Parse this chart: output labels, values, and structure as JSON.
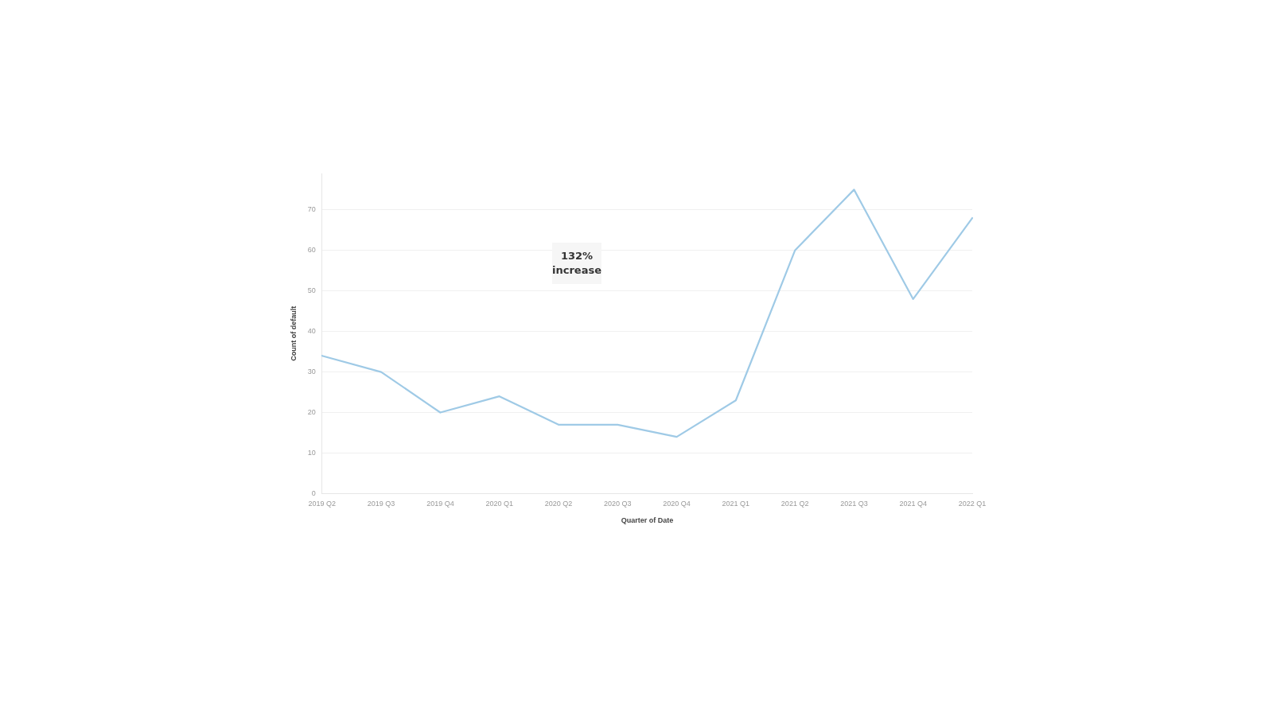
{
  "chart_data": {
    "type": "line",
    "xlabel": "Quarter of Date",
    "ylabel": "Count of default",
    "categories": [
      "2019 Q2",
      "2019 Q3",
      "2019 Q4",
      "2020 Q1",
      "2020 Q2",
      "2020 Q3",
      "2020 Q4",
      "2021 Q1",
      "2021 Q2",
      "2021 Q3",
      "2021 Q4",
      "2022 Q1"
    ],
    "series": [
      {
        "color": "#9fcae6",
        "values": [
          34,
          30,
          20,
          24,
          17,
          17,
          14,
          23,
          60,
          75,
          48,
          68
        ]
      }
    ],
    "ylim": [
      0,
      79
    ],
    "yticks": [
      0,
      10,
      20,
      30,
      40,
      50,
      60,
      70
    ],
    "grid": "y",
    "legend": false,
    "marker": "none",
    "line_style": "solid",
    "annotations": [
      "132% increase"
    ]
  }
}
